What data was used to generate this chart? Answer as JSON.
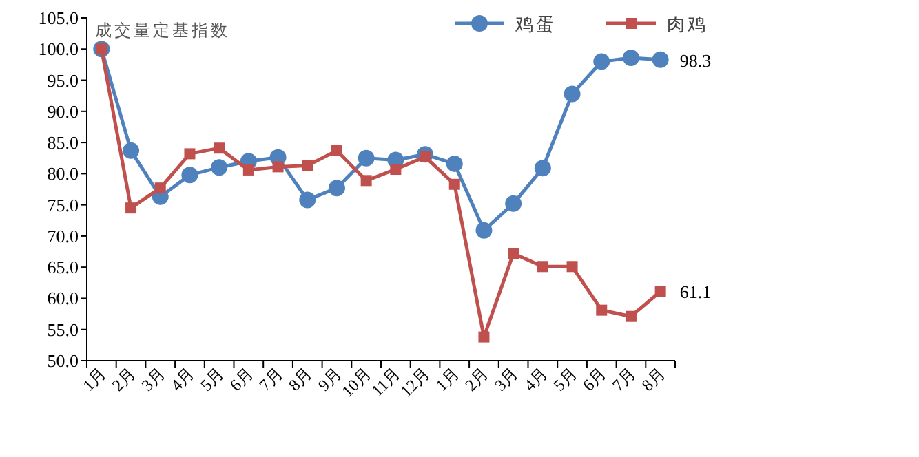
{
  "chart_data": {
    "type": "line",
    "ylabel": "成交量定基指数",
    "categories": [
      "1月",
      "2月",
      "3月",
      "4月",
      "5月",
      "6月",
      "7月",
      "8月",
      "9月",
      "10月",
      "11月",
      "12月",
      "1月",
      "2月",
      "3月",
      "4月",
      "5月",
      "6月",
      "7月",
      "8月"
    ],
    "ylim": [
      50,
      105
    ],
    "yticks": [
      {
        "value": 50,
        "label": "50.0"
      },
      {
        "value": 55,
        "label": "55.0"
      },
      {
        "value": 60,
        "label": "60.0"
      },
      {
        "value": 65,
        "label": "65.0"
      },
      {
        "value": 70,
        "label": "70.0"
      },
      {
        "value": 75,
        "label": "75.0"
      },
      {
        "value": 80,
        "label": "80.0"
      },
      {
        "value": 85,
        "label": "85.0"
      },
      {
        "value": 90,
        "label": "90.0"
      },
      {
        "value": 95,
        "label": "95.0"
      },
      {
        "value": 100,
        "label": "100.0"
      },
      {
        "value": 105,
        "label": "105.0"
      }
    ],
    "grid": false,
    "legend": "top right",
    "line_style": "solid",
    "series": [
      {
        "name": "鸡蛋",
        "color": "#4f81bd",
        "marker": "circle",
        "values": [
          100,
          83.7,
          76.3,
          79.8,
          81.0,
          82.0,
          82.6,
          75.8,
          77.7,
          82.5,
          82.2,
          83.1,
          81.6,
          70.9,
          75.2,
          80.9,
          92.8,
          98.0,
          98.6,
          98.3
        ],
        "value_labels": [
          null,
          null,
          null,
          null,
          null,
          null,
          null,
          null,
          null,
          null,
          null,
          null,
          null,
          null,
          null,
          null,
          null,
          null,
          null,
          "98.3"
        ]
      },
      {
        "name": "肉鸡",
        "color": "#c0504d",
        "marker": "square",
        "values": [
          100,
          74.5,
          77.7,
          83.2,
          84.1,
          80.6,
          81.1,
          81.3,
          83.7,
          78.9,
          80.7,
          82.7,
          78.3,
          53.8,
          67.2,
          65.1,
          65.1,
          58.1,
          57.1,
          61.1
        ],
        "value_labels": [
          null,
          null,
          null,
          null,
          null,
          null,
          null,
          null,
          null,
          null,
          null,
          null,
          null,
          null,
          null,
          null,
          null,
          null,
          null,
          "61.1"
        ]
      }
    ]
  }
}
